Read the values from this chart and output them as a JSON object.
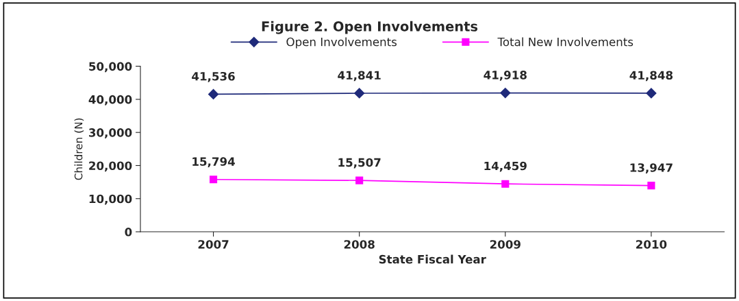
{
  "chart_data": {
    "type": "line",
    "title": "Figure 2. Open Involvements",
    "xlabel": "State Fiscal Year",
    "ylabel": "Children (N)",
    "categories": [
      "2007",
      "2008",
      "2009",
      "2010"
    ],
    "series": [
      {
        "name": "Open Involvements",
        "color": "#1f2a7a",
        "marker": "diamond",
        "values": [
          41536,
          41841,
          41918,
          41848
        ],
        "value_labels": [
          "41,536",
          "41,841",
          "41,918",
          "41,848"
        ]
      },
      {
        "name": "Total New Involvements",
        "color": "#ff00ff",
        "marker": "square",
        "values": [
          15794,
          15507,
          14459,
          13947
        ],
        "value_labels": [
          "15,794",
          "15,507",
          "14,459",
          "13,947"
        ]
      }
    ],
    "ylim": [
      0,
      50000
    ],
    "yticks": [
      {
        "value": 0,
        "label": "0"
      },
      {
        "value": 10000,
        "label": "10,000"
      },
      {
        "value": 20000,
        "label": "20,000"
      },
      {
        "value": 30000,
        "label": "30,000"
      },
      {
        "value": 40000,
        "label": "40,000"
      },
      {
        "value": 50000,
        "label": "50,000"
      }
    ],
    "legend": "top",
    "grid": false,
    "line_style": "solid"
  }
}
